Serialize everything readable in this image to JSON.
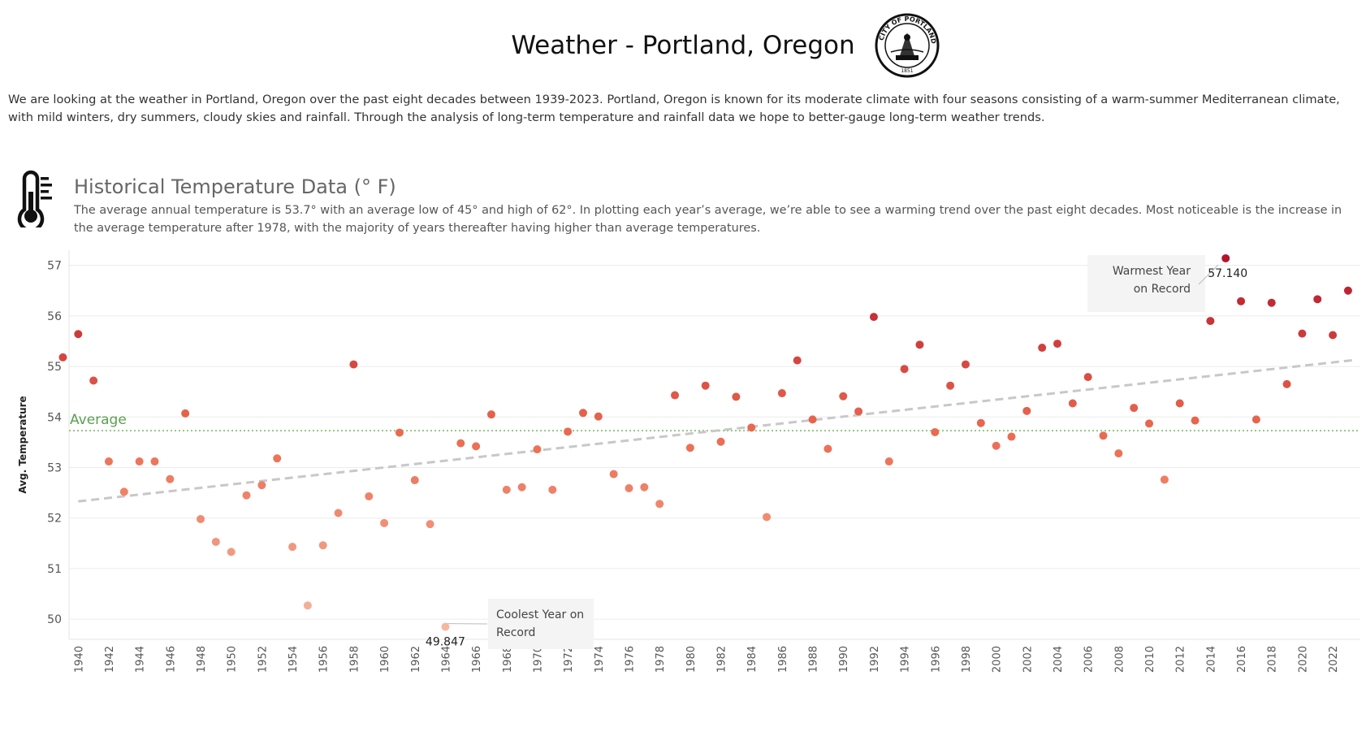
{
  "page": {
    "title": "Weather - Portland, Oregon",
    "intro": "We are looking at the weather in Portland, Oregon over the past eight decades between 1939-2023.  Portland, Oregon is known for its moderate climate with four seasons consisting of a warm-summer Mediterranean climate, with mild winters, dry summers, cloudy skies and rainfall. Through the analysis of long-term temperature and rainfall data we hope to better-gauge long-term weather trends.",
    "seal": {
      "text": "CITY OF PORTLAND OREGON",
      "year": "1851"
    }
  },
  "section": {
    "title": "Historical Temperature Data (° F)",
    "description": "The average annual temperature is 53.7° with an average low of 45° and high of 62°.  In plotting each year’s average, we’re able to see a warming trend over the past eight decades.  Most noticeable is the increase in the average temperature after 1978, with the majority of years thereafter having higher than average temperatures.",
    "icon": "thermometer-icon"
  },
  "chart_data": {
    "type": "scatter",
    "ylabel": "Avg. Temperature",
    "ylim": [
      49.6,
      57.3
    ],
    "yticks": [
      50,
      51,
      52,
      53,
      54,
      55,
      56,
      57
    ],
    "xlim": [
      1939.4,
      2023.8
    ],
    "xticks": [
      1940,
      1942,
      1944,
      1946,
      1948,
      1950,
      1952,
      1954,
      1956,
      1958,
      1960,
      1962,
      1964,
      1966,
      1968,
      1970,
      1972,
      1974,
      1976,
      1978,
      1980,
      1982,
      1984,
      1986,
      1988,
      1990,
      1992,
      1994,
      1996,
      1998,
      2000,
      2002,
      2004,
      2006,
      2008,
      2010,
      2012,
      2014,
      2016,
      2018,
      2020,
      2022
    ],
    "average": {
      "label": "Average",
      "value": 53.73,
      "color": "#8fc97f"
    },
    "trend": {
      "from": [
        1940,
        52.33
      ],
      "to": [
        2023.5,
        55.13
      ],
      "color": "#c8c8c8"
    },
    "color_scale": {
      "low": "#f6b8a2",
      "mid": "#ea6a50",
      "high": "#b5132b"
    },
    "grid": true,
    "points": [
      {
        "year": 1939,
        "temp": 55.18
      },
      {
        "year": 1940,
        "temp": 55.64
      },
      {
        "year": 1941,
        "temp": 54.72
      },
      {
        "year": 1942,
        "temp": 53.12
      },
      {
        "year": 1943,
        "temp": 52.52
      },
      {
        "year": 1944,
        "temp": 53.12
      },
      {
        "year": 1945,
        "temp": 53.12
      },
      {
        "year": 1946,
        "temp": 52.77
      },
      {
        "year": 1947,
        "temp": 54.07
      },
      {
        "year": 1948,
        "temp": 51.98
      },
      {
        "year": 1949,
        "temp": 51.53
      },
      {
        "year": 1950,
        "temp": 51.33
      },
      {
        "year": 1951,
        "temp": 52.45
      },
      {
        "year": 1952,
        "temp": 52.65
      },
      {
        "year": 1953,
        "temp": 53.18
      },
      {
        "year": 1954,
        "temp": 51.43
      },
      {
        "year": 1955,
        "temp": 50.27
      },
      {
        "year": 1956,
        "temp": 51.46
      },
      {
        "year": 1957,
        "temp": 52.1
      },
      {
        "year": 1958,
        "temp": 55.04
      },
      {
        "year": 1959,
        "temp": 52.43
      },
      {
        "year": 1960,
        "temp": 51.9
      },
      {
        "year": 1961,
        "temp": 53.69
      },
      {
        "year": 1962,
        "temp": 52.75
      },
      {
        "year": 1963,
        "temp": 51.88
      },
      {
        "year": 1964,
        "temp": 49.847
      },
      {
        "year": 1965,
        "temp": 53.48
      },
      {
        "year": 1966,
        "temp": 53.42
      },
      {
        "year": 1967,
        "temp": 54.05
      },
      {
        "year": 1968,
        "temp": 52.56
      },
      {
        "year": 1969,
        "temp": 52.61
      },
      {
        "year": 1970,
        "temp": 53.36
      },
      {
        "year": 1971,
        "temp": 52.56
      },
      {
        "year": 1972,
        "temp": 53.71
      },
      {
        "year": 1973,
        "temp": 54.08
      },
      {
        "year": 1974,
        "temp": 54.01
      },
      {
        "year": 1975,
        "temp": 52.87
      },
      {
        "year": 1976,
        "temp": 52.59
      },
      {
        "year": 1977,
        "temp": 52.61
      },
      {
        "year": 1978,
        "temp": 52.28
      },
      {
        "year": 1979,
        "temp": 54.43
      },
      {
        "year": 1980,
        "temp": 53.39
      },
      {
        "year": 1981,
        "temp": 54.62
      },
      {
        "year": 1982,
        "temp": 53.51
      },
      {
        "year": 1983,
        "temp": 54.4
      },
      {
        "year": 1984,
        "temp": 53.79
      },
      {
        "year": 1985,
        "temp": 52.02
      },
      {
        "year": 1986,
        "temp": 54.47
      },
      {
        "year": 1987,
        "temp": 55.12
      },
      {
        "year": 1988,
        "temp": 53.95
      },
      {
        "year": 1989,
        "temp": 53.37
      },
      {
        "year": 1990,
        "temp": 54.41
      },
      {
        "year": 1991,
        "temp": 54.11
      },
      {
        "year": 1992,
        "temp": 55.98
      },
      {
        "year": 1993,
        "temp": 53.12
      },
      {
        "year": 1994,
        "temp": 54.95
      },
      {
        "year": 1995,
        "temp": 55.43
      },
      {
        "year": 1996,
        "temp": 53.7
      },
      {
        "year": 1997,
        "temp": 54.62
      },
      {
        "year": 1998,
        "temp": 55.04
      },
      {
        "year": 1999,
        "temp": 53.88
      },
      {
        "year": 2000,
        "temp": 53.43
      },
      {
        "year": 2001,
        "temp": 53.61
      },
      {
        "year": 2002,
        "temp": 54.12
      },
      {
        "year": 2003,
        "temp": 55.37
      },
      {
        "year": 2004,
        "temp": 55.45
      },
      {
        "year": 2005,
        "temp": 54.27
      },
      {
        "year": 2006,
        "temp": 54.79
      },
      {
        "year": 2007,
        "temp": 53.63
      },
      {
        "year": 2008,
        "temp": 53.28
      },
      {
        "year": 2009,
        "temp": 54.18
      },
      {
        "year": 2010,
        "temp": 53.87
      },
      {
        "year": 2011,
        "temp": 52.76
      },
      {
        "year": 2012,
        "temp": 54.27
      },
      {
        "year": 2013,
        "temp": 53.93
      },
      {
        "year": 2014,
        "temp": 55.9
      },
      {
        "year": 2015,
        "temp": 57.14
      },
      {
        "year": 2016,
        "temp": 56.29
      },
      {
        "year": 2017,
        "temp": 53.95
      },
      {
        "year": 2018,
        "temp": 56.26
      },
      {
        "year": 2019,
        "temp": 54.65
      },
      {
        "year": 2020,
        "temp": 55.65
      },
      {
        "year": 2021,
        "temp": 56.33
      },
      {
        "year": 2022,
        "temp": 55.62
      },
      {
        "year": 2023,
        "temp": 56.5
      }
    ],
    "annotations": [
      {
        "name": "warmest",
        "year": 2015,
        "temp": 57.14,
        "text": [
          "Warmest Year",
          "on Record"
        ],
        "value_label": "57.140"
      },
      {
        "name": "coolest",
        "year": 1964,
        "temp": 49.847,
        "text": [
          "Coolest Year on",
          "Record"
        ],
        "value_label": "49.847"
      }
    ]
  }
}
